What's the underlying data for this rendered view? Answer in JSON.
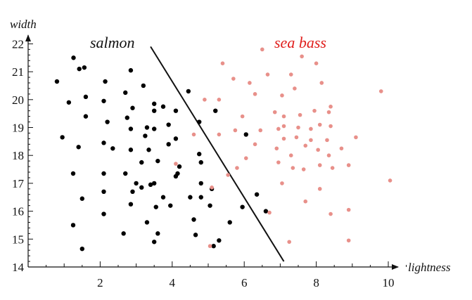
{
  "chart_data": {
    "type": "scatter",
    "xlabel": "lightness",
    "ylabel": "width",
    "xlim": [
      0,
      11
    ],
    "ylim": [
      14,
      22.4
    ],
    "x_ticks": [
      2,
      4,
      6,
      8,
      10
    ],
    "y_ticks": [
      14,
      15,
      16,
      17,
      18,
      19,
      20,
      21,
      22
    ],
    "grid": false,
    "annotations": [
      {
        "text": "salmon",
        "color": "#111111"
      },
      {
        "text": "sea bass",
        "color": "#e0201e"
      }
    ],
    "decision_boundary": {
      "from": [
        3.4,
        21.9
      ],
      "to": [
        7.1,
        14.2
      ],
      "color": "#111111"
    },
    "series": [
      {
        "name": "salmon",
        "color": "#000000",
        "points": [
          [
            1.26,
            21.5
          ],
          [
            1.42,
            21.1
          ],
          [
            1.56,
            21.15
          ],
          [
            0.8,
            20.65
          ],
          [
            2.14,
            20.65
          ],
          [
            2.85,
            21.05
          ],
          [
            3.2,
            20.5
          ],
          [
            2.7,
            20.25
          ],
          [
            1.13,
            19.9
          ],
          [
            1.6,
            20.1
          ],
          [
            2.1,
            19.95
          ],
          [
            2.9,
            19.7
          ],
          [
            3.5,
            19.85
          ],
          [
            3.75,
            19.75
          ],
          [
            3.5,
            19.6
          ],
          [
            4.1,
            19.6
          ],
          [
            4.45,
            20.3
          ],
          [
            5.2,
            19.6
          ],
          [
            1.6,
            19.4
          ],
          [
            2.2,
            19.2
          ],
          [
            2.75,
            19.35
          ],
          [
            3.3,
            19.0
          ],
          [
            3.9,
            19.1
          ],
          [
            4.75,
            19.2
          ],
          [
            0.95,
            18.65
          ],
          [
            1.4,
            18.3
          ],
          [
            2.1,
            18.45
          ],
          [
            2.35,
            18.25
          ],
          [
            2.85,
            18.95
          ],
          [
            3.25,
            18.7
          ],
          [
            3.5,
            18.95
          ],
          [
            2.85,
            18.2
          ],
          [
            3.35,
            18.2
          ],
          [
            4.1,
            18.6
          ],
          [
            3.9,
            18.4
          ],
          [
            4.75,
            18.05
          ],
          [
            6.05,
            18.75
          ],
          [
            3.15,
            17.75
          ],
          [
            3.6,
            17.8
          ],
          [
            4.2,
            17.6
          ],
          [
            4.8,
            17.75
          ],
          [
            1.25,
            17.35
          ],
          [
            2.1,
            17.35
          ],
          [
            2.7,
            17.35
          ],
          [
            4.15,
            17.35
          ],
          [
            3.0,
            17.0
          ],
          [
            3.5,
            17.0
          ],
          [
            4.1,
            17.25
          ],
          [
            2.1,
            16.7
          ],
          [
            2.9,
            16.7
          ],
          [
            3.15,
            16.85
          ],
          [
            3.4,
            16.95
          ],
          [
            3.75,
            16.5
          ],
          [
            4.5,
            16.5
          ],
          [
            4.8,
            16.5
          ],
          [
            4.8,
            17.0
          ],
          [
            5.1,
            16.8
          ],
          [
            6.35,
            16.6
          ],
          [
            1.5,
            16.45
          ],
          [
            2.85,
            16.25
          ],
          [
            3.55,
            16.15
          ],
          [
            3.95,
            16.2
          ],
          [
            5.05,
            16.2
          ],
          [
            5.95,
            16.15
          ],
          [
            2.1,
            15.9
          ],
          [
            3.3,
            15.6
          ],
          [
            4.6,
            15.7
          ],
          [
            5.6,
            15.6
          ],
          [
            6.6,
            16.0
          ],
          [
            1.25,
            15.5
          ],
          [
            2.65,
            15.2
          ],
          [
            3.6,
            15.2
          ],
          [
            4.65,
            15.15
          ],
          [
            3.5,
            14.9
          ],
          [
            5.3,
            14.95
          ],
          [
            1.5,
            14.65
          ],
          [
            5.15,
            14.75
          ]
        ]
      },
      {
        "name": "sea bass",
        "color": "#e8908a",
        "points": [
          [
            6.5,
            21.8
          ],
          [
            7.6,
            21.55
          ],
          [
            5.4,
            21.3
          ],
          [
            8.0,
            21.3
          ],
          [
            6.65,
            20.9
          ],
          [
            7.3,
            20.9
          ],
          [
            5.7,
            20.75
          ],
          [
            6.15,
            20.6
          ],
          [
            8.15,
            20.6
          ],
          [
            7.4,
            20.4
          ],
          [
            6.3,
            20.2
          ],
          [
            7.05,
            20.15
          ],
          [
            4.9,
            20.0
          ],
          [
            5.3,
            20.0
          ],
          [
            8.4,
            19.75
          ],
          [
            9.8,
            20.3
          ],
          [
            5.95,
            19.4
          ],
          [
            6.85,
            19.55
          ],
          [
            7.1,
            19.4
          ],
          [
            7.55,
            19.45
          ],
          [
            7.95,
            19.6
          ],
          [
            8.35,
            19.55
          ],
          [
            4.6,
            18.75
          ],
          [
            5.3,
            18.75
          ],
          [
            5.75,
            18.9
          ],
          [
            6.45,
            18.9
          ],
          [
            6.95,
            18.95
          ],
          [
            7.1,
            19.05
          ],
          [
            7.5,
            19.0
          ],
          [
            7.85,
            18.95
          ],
          [
            8.1,
            19.1
          ],
          [
            8.4,
            19.05
          ],
          [
            7.1,
            18.6
          ],
          [
            7.45,
            18.65
          ],
          [
            7.7,
            18.35
          ],
          [
            7.85,
            18.55
          ],
          [
            8.3,
            18.55
          ],
          [
            8.7,
            18.25
          ],
          [
            9.1,
            18.65
          ],
          [
            6.3,
            18.4
          ],
          [
            6.9,
            18.25
          ],
          [
            7.3,
            18.0
          ],
          [
            8.05,
            18.2
          ],
          [
            8.35,
            18.0
          ],
          [
            6.05,
            17.9
          ],
          [
            6.95,
            17.75
          ],
          [
            5.8,
            17.55
          ],
          [
            7.35,
            17.55
          ],
          [
            7.65,
            17.5
          ],
          [
            8.1,
            17.65
          ],
          [
            8.45,
            17.55
          ],
          [
            8.9,
            17.65
          ],
          [
            4.1,
            17.7
          ],
          [
            5.55,
            17.3
          ],
          [
            7.05,
            17.0
          ],
          [
            8.1,
            16.8
          ],
          [
            10.05,
            17.1
          ],
          [
            5.1,
            16.85
          ],
          [
            7.7,
            16.35
          ],
          [
            8.4,
            15.9
          ],
          [
            8.9,
            16.05
          ],
          [
            6.7,
            15.95
          ],
          [
            5.05,
            14.75
          ],
          [
            7.25,
            14.9
          ],
          [
            8.9,
            14.95
          ]
        ]
      }
    ]
  }
}
